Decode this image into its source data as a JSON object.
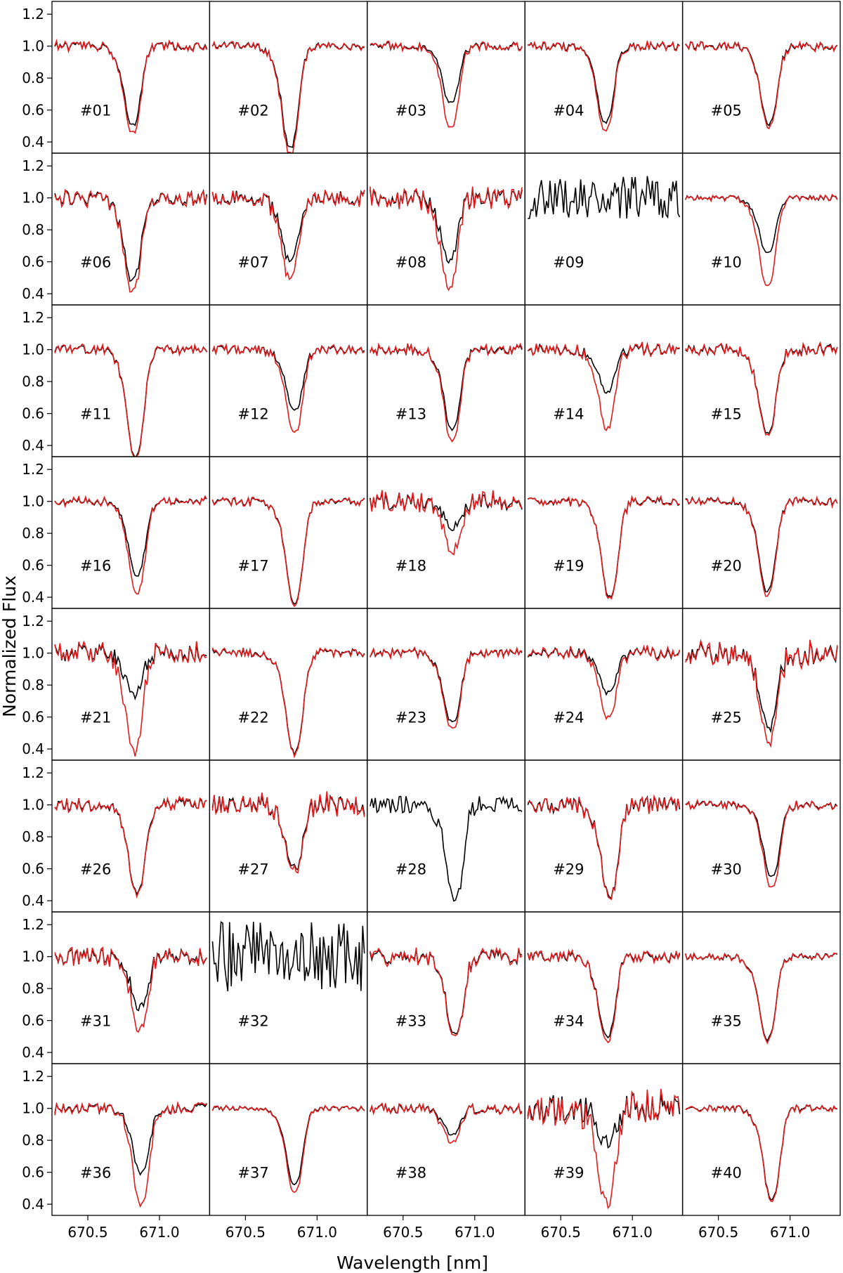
{
  "chart_data": {
    "type": "line",
    "grid": false,
    "layout": {
      "rows": 8,
      "cols": 5,
      "sharex": true,
      "sharey": true
    },
    "xlabel": "Wavelength [nm]",
    "ylabel": "Normalized Flux",
    "xlim": [
      670.25,
      671.35
    ],
    "ylim": [
      0.33,
      1.28
    ],
    "xticks": [
      670.5,
      671.0
    ],
    "xtick_labels": [
      "670.5",
      "671.0"
    ],
    "yticks": [
      0.4,
      0.6,
      0.8,
      1.0,
      1.2
    ],
    "ytick_labels": [
      "0.4",
      "0.6",
      "0.8",
      "1.0",
      "1.2"
    ],
    "series_colors": {
      "black": "#000000",
      "red": "#e41a1c"
    },
    "profile": {
      "x": [
        670.6,
        670.66,
        670.7,
        670.73,
        670.76,
        670.78,
        670.8,
        670.82,
        670.84,
        670.86,
        670.88,
        670.9,
        670.92,
        670.95,
        670.98,
        671.02,
        671.07
      ],
      "shape": [
        0.0,
        0.05,
        0.15,
        0.3,
        0.55,
        0.8,
        0.95,
        1.0,
        0.97,
        0.85,
        0.6,
        0.35,
        0.15,
        0.04,
        0.0,
        0.0,
        0.0
      ]
    },
    "panels": [
      {
        "label": "#01",
        "center": 670.81,
        "black_min": 0.5,
        "red_min": 0.45,
        "noise": 0.025,
        "seed": 1,
        "red": true
      },
      {
        "label": "#02",
        "center": 670.81,
        "black_min": 0.36,
        "red_min": 0.32,
        "noise": 0.025,
        "seed": 2,
        "red": true
      },
      {
        "label": "#03",
        "center": 670.83,
        "black_min": 0.64,
        "red_min": 0.48,
        "noise": 0.025,
        "seed": 3,
        "red": true
      },
      {
        "label": "#04",
        "center": 670.81,
        "black_min": 0.52,
        "red_min": 0.47,
        "noise": 0.025,
        "seed": 4,
        "red": true
      },
      {
        "label": "#05",
        "center": 670.85,
        "black_min": 0.51,
        "red_min": 0.49,
        "noise": 0.025,
        "seed": 5,
        "red": true
      },
      {
        "label": "#06",
        "center": 670.81,
        "black_min": 0.48,
        "red_min": 0.41,
        "noise": 0.045,
        "seed": 6,
        "red": true
      },
      {
        "label": "#07",
        "center": 670.81,
        "black_min": 0.6,
        "red_min": 0.49,
        "noise": 0.045,
        "seed": 7,
        "red": true
      },
      {
        "label": "#08",
        "center": 670.82,
        "black_min": 0.6,
        "red_min": 0.43,
        "noise": 0.055,
        "seed": 8,
        "red": true
      },
      {
        "label": "#09",
        "center": 670.8,
        "black_min": 0.97,
        "red_min": 0.97,
        "noise": 0.14,
        "seed": 9,
        "red": false
      },
      {
        "label": "#10",
        "center": 670.84,
        "black_min": 0.65,
        "red_min": 0.44,
        "noise": 0.015,
        "seed": 10,
        "red": true
      },
      {
        "label": "#11",
        "center": 670.83,
        "black_min": 0.32,
        "red_min": 0.31,
        "noise": 0.025,
        "seed": 11,
        "red": true
      },
      {
        "label": "#12",
        "center": 670.84,
        "black_min": 0.62,
        "red_min": 0.48,
        "noise": 0.025,
        "seed": 12,
        "red": true
      },
      {
        "label": "#13",
        "center": 670.84,
        "black_min": 0.5,
        "red_min": 0.43,
        "noise": 0.03,
        "seed": 13,
        "red": true
      },
      {
        "label": "#14",
        "center": 670.82,
        "black_min": 0.74,
        "red_min": 0.51,
        "noise": 0.035,
        "seed": 14,
        "red": true
      },
      {
        "label": "#15",
        "center": 670.84,
        "black_min": 0.47,
        "red_min": 0.46,
        "noise": 0.035,
        "seed": 15,
        "red": true
      },
      {
        "label": "#16",
        "center": 670.84,
        "black_min": 0.53,
        "red_min": 0.42,
        "noise": 0.025,
        "seed": 16,
        "red": true
      },
      {
        "label": "#17",
        "center": 670.84,
        "black_min": 0.36,
        "red_min": 0.35,
        "noise": 0.025,
        "seed": 17,
        "red": true
      },
      {
        "label": "#18",
        "center": 670.84,
        "black_min": 0.84,
        "red_min": 0.69,
        "noise": 0.055,
        "seed": 18,
        "red": true
      },
      {
        "label": "#19",
        "center": 670.84,
        "black_min": 0.4,
        "red_min": 0.39,
        "noise": 0.025,
        "seed": 19,
        "red": true
      },
      {
        "label": "#20",
        "center": 670.84,
        "black_min": 0.43,
        "red_min": 0.4,
        "noise": 0.025,
        "seed": 20,
        "red": true
      },
      {
        "label": "#21",
        "center": 670.82,
        "black_min": 0.74,
        "red_min": 0.38,
        "noise": 0.06,
        "seed": 21,
        "red": true
      },
      {
        "label": "#22",
        "center": 670.84,
        "black_min": 0.37,
        "red_min": 0.36,
        "noise": 0.025,
        "seed": 22,
        "red": true
      },
      {
        "label": "#23",
        "center": 670.84,
        "black_min": 0.56,
        "red_min": 0.52,
        "noise": 0.025,
        "seed": 23,
        "red": true
      },
      {
        "label": "#24",
        "center": 670.83,
        "black_min": 0.75,
        "red_min": 0.59,
        "noise": 0.035,
        "seed": 24,
        "red": true
      },
      {
        "label": "#25",
        "center": 670.85,
        "black_min": 0.53,
        "red_min": 0.44,
        "noise": 0.07,
        "seed": 25,
        "red": true
      },
      {
        "label": "#26",
        "center": 670.84,
        "black_min": 0.45,
        "red_min": 0.44,
        "noise": 0.035,
        "seed": 26,
        "red": true
      },
      {
        "label": "#27",
        "center": 670.84,
        "black_min": 0.6,
        "red_min": 0.58,
        "noise": 0.06,
        "seed": 27,
        "red": true
      },
      {
        "label": "#28",
        "center": 670.86,
        "black_min": 0.4,
        "red_min": 0.4,
        "noise": 0.055,
        "seed": 28,
        "red": false
      },
      {
        "label": "#29",
        "center": 670.84,
        "black_min": 0.42,
        "red_min": 0.41,
        "noise": 0.05,
        "seed": 29,
        "red": true
      },
      {
        "label": "#30",
        "center": 670.87,
        "black_min": 0.55,
        "red_min": 0.48,
        "noise": 0.025,
        "seed": 30,
        "red": true
      },
      {
        "label": "#31",
        "center": 670.86,
        "black_min": 0.68,
        "red_min": 0.54,
        "noise": 0.05,
        "seed": 31,
        "red": true
      },
      {
        "label": "#32",
        "center": 670.8,
        "black_min": 0.95,
        "red_min": 0.95,
        "noise": 0.22,
        "seed": 32,
        "red": false
      },
      {
        "label": "#33",
        "center": 670.86,
        "black_min": 0.5,
        "red_min": 0.49,
        "noise": 0.045,
        "seed": 33,
        "red": true
      },
      {
        "label": "#34",
        "center": 670.82,
        "black_min": 0.49,
        "red_min": 0.46,
        "noise": 0.03,
        "seed": 34,
        "red": true
      },
      {
        "label": "#35",
        "center": 670.84,
        "black_min": 0.48,
        "red_min": 0.47,
        "noise": 0.02,
        "seed": 35,
        "red": true
      },
      {
        "label": "#36",
        "center": 670.87,
        "black_min": 0.59,
        "red_min": 0.39,
        "noise": 0.03,
        "seed": 36,
        "red": true
      },
      {
        "label": "#37",
        "center": 670.84,
        "black_min": 0.52,
        "red_min": 0.47,
        "noise": 0.015,
        "seed": 37,
        "red": true
      },
      {
        "label": "#38",
        "center": 670.84,
        "black_min": 0.84,
        "red_min": 0.79,
        "noise": 0.03,
        "seed": 38,
        "red": true
      },
      {
        "label": "#39",
        "center": 670.82,
        "black_min": 0.79,
        "red_min": 0.4,
        "noise": 0.09,
        "seed": 39,
        "red": true
      },
      {
        "label": "#40",
        "center": 670.87,
        "black_min": 0.43,
        "red_min": 0.42,
        "noise": 0.02,
        "seed": 40,
        "red": true
      }
    ]
  }
}
